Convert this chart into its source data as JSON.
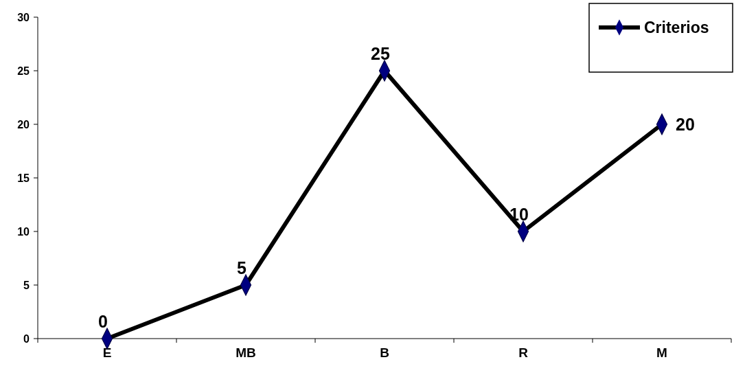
{
  "chart_data": {
    "type": "line",
    "categories": [
      "E",
      "MB",
      "B",
      "R",
      "M"
    ],
    "series": [
      {
        "name": "Criterios",
        "color": "#000000",
        "values": [
          0,
          5,
          25,
          10,
          20
        ]
      }
    ],
    "ylim": [
      0,
      30
    ],
    "yticks": [
      0,
      5,
      10,
      15,
      20,
      25,
      30
    ],
    "grid": false,
    "legend": "top right",
    "marker": "diamond",
    "line_style": "solid",
    "data_labels": true
  }
}
